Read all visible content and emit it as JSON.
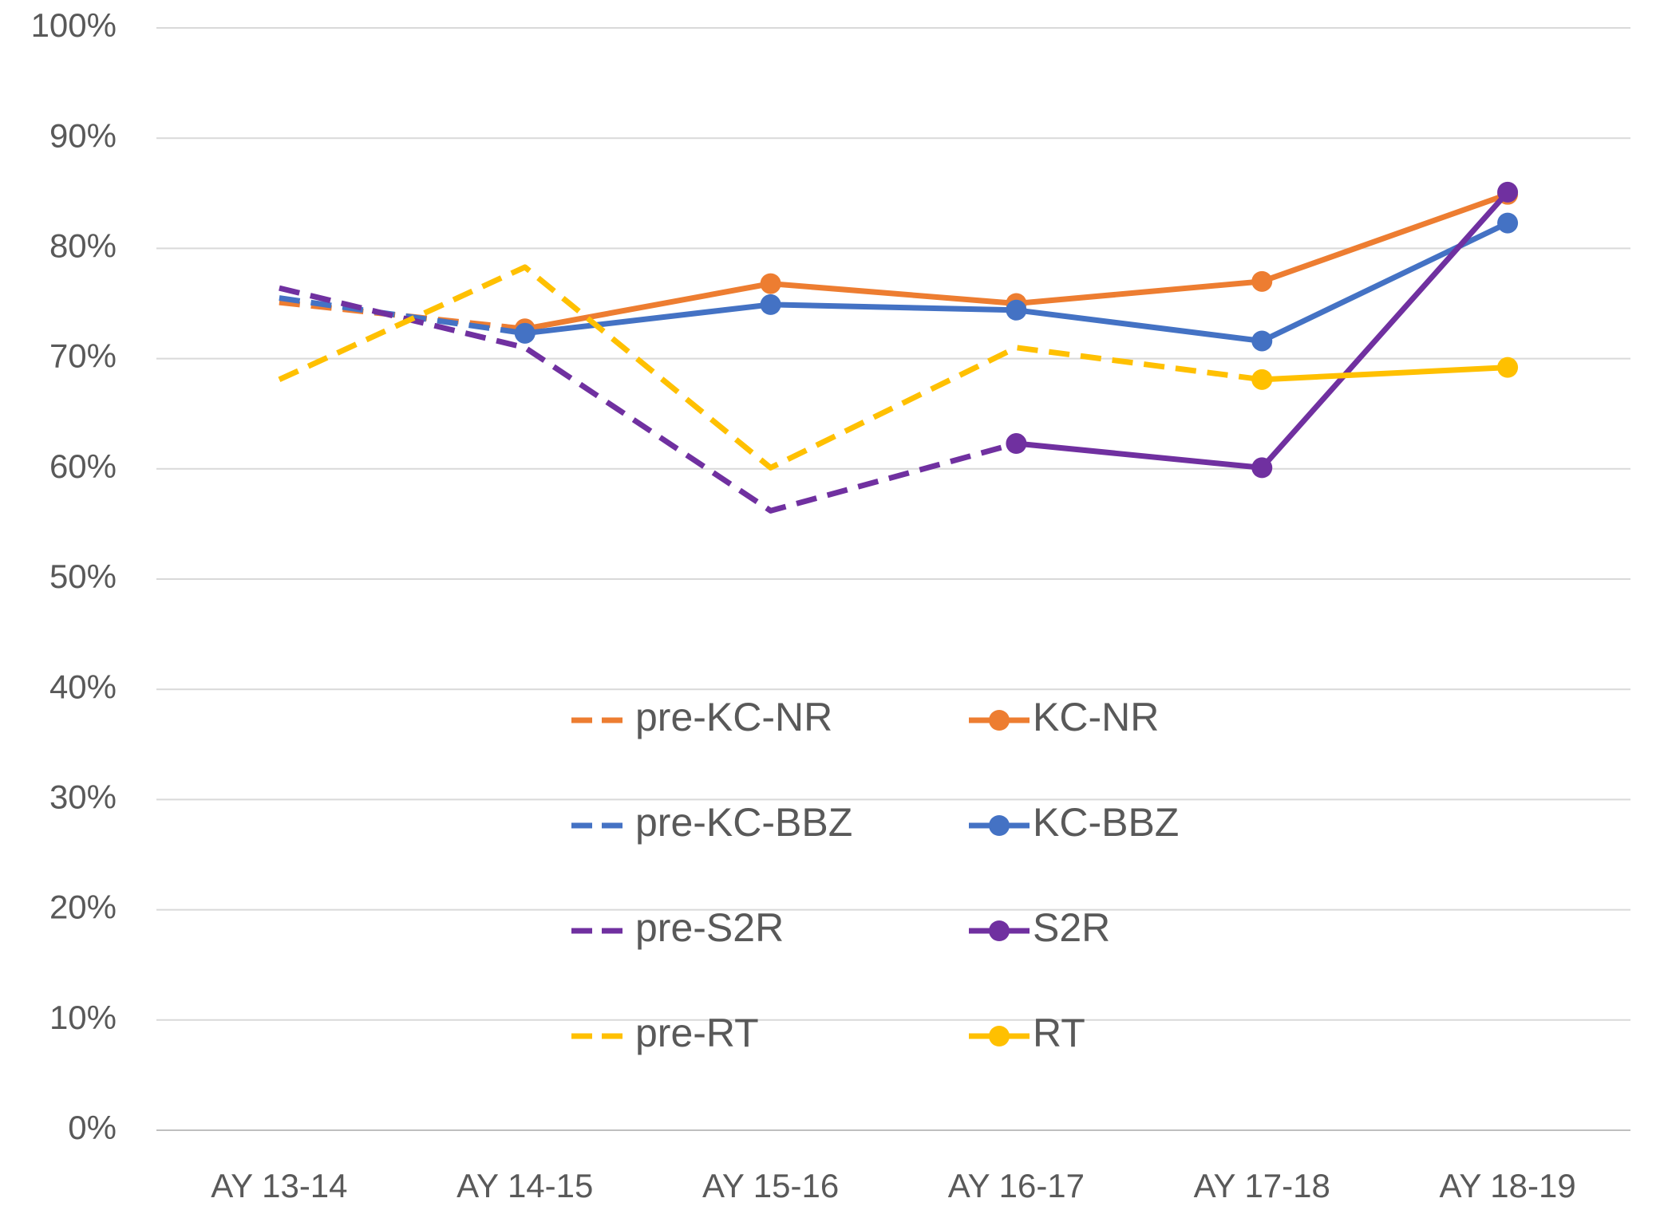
{
  "chart_data": {
    "type": "line",
    "categories": [
      "AY 13-14",
      "AY 14-15",
      "AY 15-16",
      "AY 16-17",
      "AY 17-18",
      "AY 18-19"
    ],
    "ylim": [
      0,
      100
    ],
    "yticks": [
      {
        "value": 0,
        "label": "0%"
      },
      {
        "value": 10,
        "label": "10%"
      },
      {
        "value": 20,
        "label": "20%"
      },
      {
        "value": 30,
        "label": "30%"
      },
      {
        "value": 40,
        "label": "40%"
      },
      {
        "value": 50,
        "label": "50%"
      },
      {
        "value": 60,
        "label": "60%"
      },
      {
        "value": 70,
        "label": "70%"
      },
      {
        "value": 80,
        "label": "80%"
      },
      {
        "value": 90,
        "label": "90%"
      },
      {
        "value": 100,
        "label": "100%"
      }
    ],
    "grid": true,
    "series": [
      {
        "name": "pre-KC-NR",
        "color": "#ed7d31",
        "dashed": true,
        "values": [
          75.1,
          72.7,
          null,
          null,
          null,
          null
        ]
      },
      {
        "name": "KC-NR",
        "color": "#ed7d31",
        "dashed": false,
        "values": [
          null,
          72.7,
          76.8,
          75.0,
          77.0,
          84.9
        ]
      },
      {
        "name": "pre-KC-BBZ",
        "color": "#4472c4",
        "dashed": true,
        "values": [
          75.5,
          72.3,
          null,
          null,
          null,
          null
        ]
      },
      {
        "name": "KC-BBZ",
        "color": "#4472c4",
        "dashed": false,
        "values": [
          null,
          72.3,
          74.9,
          74.4,
          71.6,
          82.3
        ]
      },
      {
        "name": "pre-S2R",
        "color": "#7030a0",
        "dashed": true,
        "values": [
          76.4,
          71.0,
          56.2,
          62.3,
          null,
          null
        ]
      },
      {
        "name": "S2R",
        "color": "#7030a0",
        "dashed": false,
        "values": [
          null,
          null,
          null,
          62.3,
          60.1,
          85.1
        ]
      },
      {
        "name": "pre-RT",
        "color": "#ffc000",
        "dashed": true,
        "values": [
          68.1,
          78.3,
          60.1,
          71.0,
          68.1,
          null
        ]
      },
      {
        "name": "RT",
        "color": "#ffc000",
        "dashed": false,
        "values": [
          null,
          null,
          null,
          null,
          68.1,
          69.2
        ]
      }
    ]
  }
}
